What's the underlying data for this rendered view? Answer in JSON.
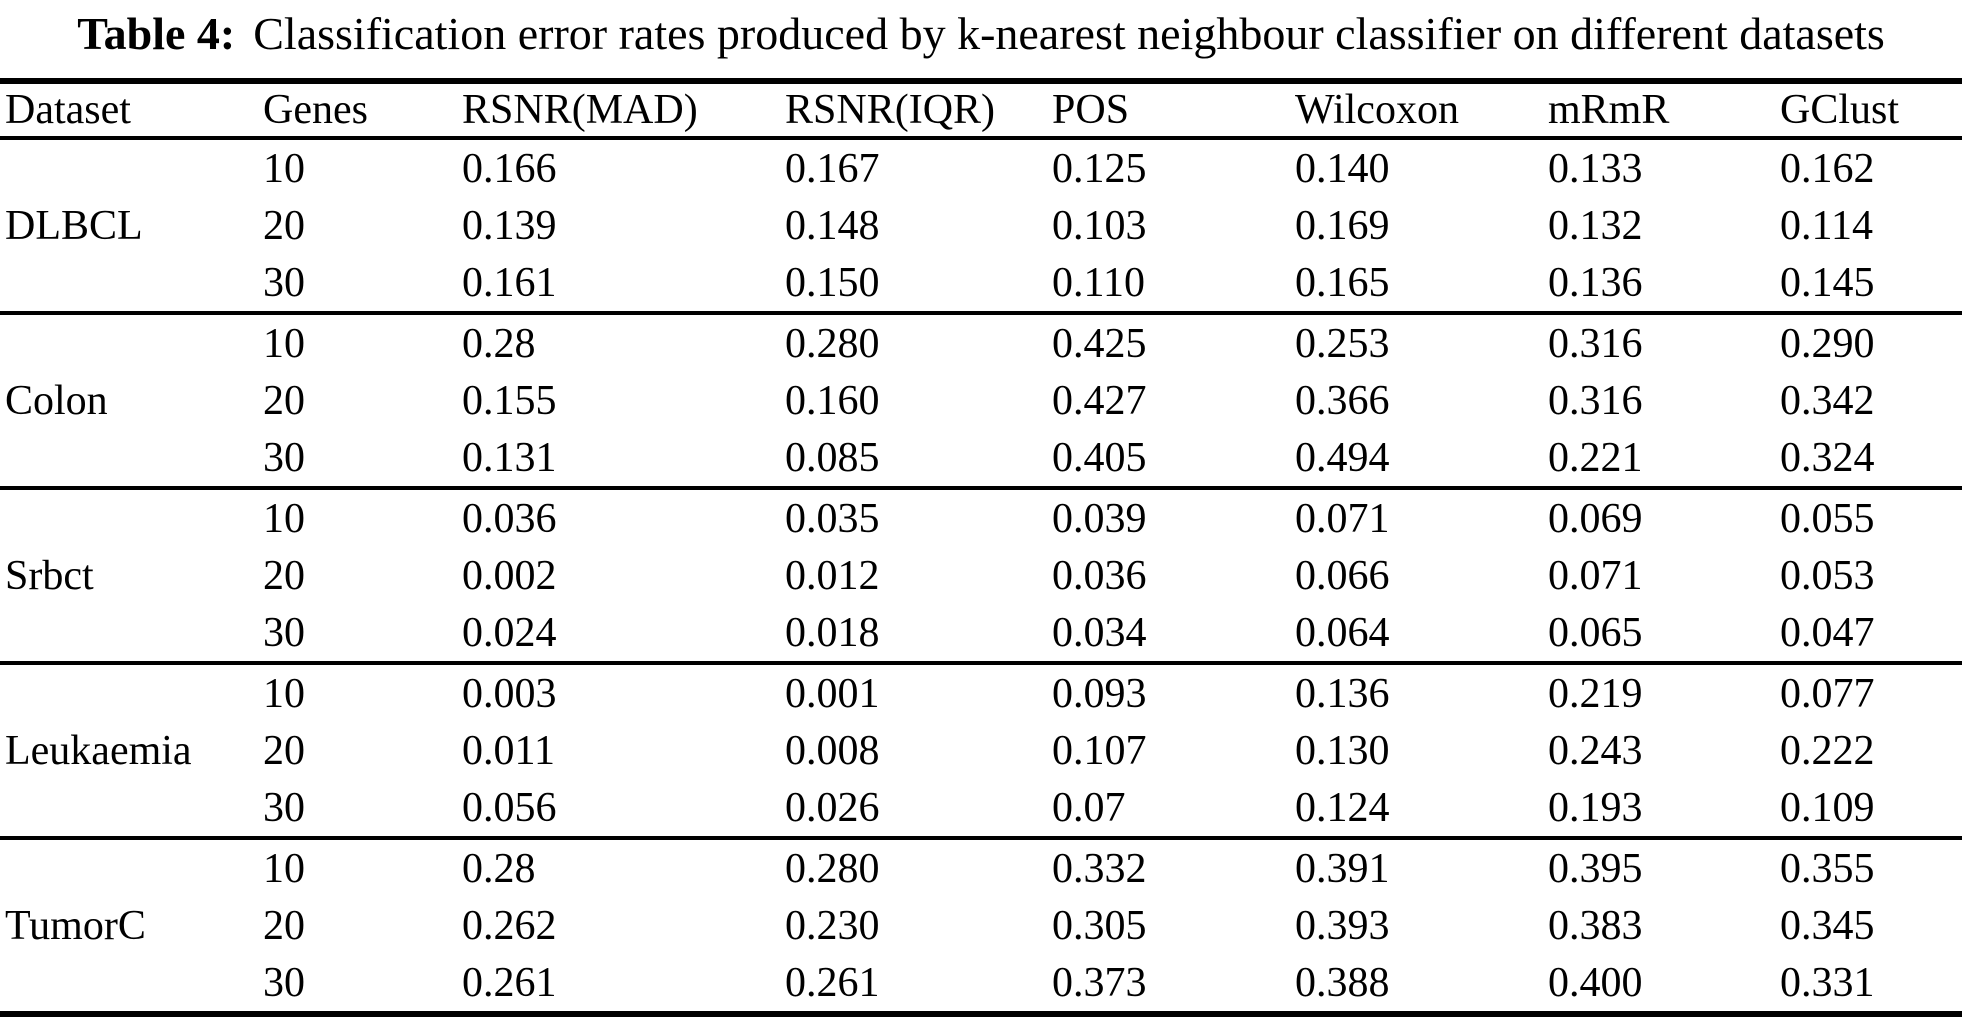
{
  "caption": {
    "label": "Table 4:",
    "text": "Classification error rates produced by k-nearest neighbour classifier on different datasets"
  },
  "table": {
    "columns": [
      "Dataset",
      "Genes",
      "RSNR(MAD)",
      "RSNR(IQR)",
      "POS",
      "Wilcoxon",
      "mRmR",
      "GClust"
    ],
    "groups": [
      {
        "dataset": "DLBCL",
        "rows": [
          {
            "genes": "10",
            "values": [
              "0.166",
              "0.167",
              "0.125",
              "0.140",
              "0.133",
              "0.162"
            ],
            "bold": [
              2
            ]
          },
          {
            "genes": "20",
            "values": [
              "0.139",
              "0.148",
              "0.103",
              "0.169",
              "0.132",
              "0.114"
            ],
            "bold": [
              2
            ]
          },
          {
            "genes": "30",
            "values": [
              "0.161",
              "0.150",
              "0.110",
              "0.165",
              "0.136",
              "0.145"
            ],
            "bold": [
              2
            ]
          }
        ]
      },
      {
        "dataset": "Colon",
        "rows": [
          {
            "genes": "10",
            "values": [
              "0.28",
              "0.280",
              "0.425",
              "0.253",
              "0.316",
              "0.290"
            ],
            "bold": [
              3
            ]
          },
          {
            "genes": "20",
            "values": [
              "0.155",
              "0.160",
              "0.427",
              "0.366",
              "0.316",
              "0.342"
            ],
            "bold": [
              0
            ]
          },
          {
            "genes": "30",
            "values": [
              "0.131",
              "0.085",
              "0.405",
              "0.494",
              "0.221",
              "0.324"
            ],
            "bold": [
              1
            ]
          }
        ]
      },
      {
        "dataset": "Srbct",
        "rows": [
          {
            "genes": "10",
            "values": [
              "0.036",
              "0.035",
              "0.039",
              "0.071",
              "0.069",
              "0.055"
            ],
            "bold": [
              1
            ]
          },
          {
            "genes": "20",
            "values": [
              "0.002",
              "0.012",
              "0.036",
              "0.066",
              "0.071",
              "0.053"
            ],
            "bold": [
              0
            ]
          },
          {
            "genes": "30",
            "values": [
              "0.024",
              "0.018",
              "0.034",
              "0.064",
              "0.065",
              "0.047"
            ],
            "bold": [
              1
            ]
          }
        ]
      },
      {
        "dataset": "Leukaemia",
        "rows": [
          {
            "genes": "10",
            "values": [
              "0.003",
              "0.001",
              "0.093",
              "0.136",
              "0.219",
              "0.077"
            ],
            "bold": [
              1
            ]
          },
          {
            "genes": "20",
            "values": [
              "0.011",
              "0.008",
              "0.107",
              "0.130",
              "0.243",
              "0.222"
            ],
            "bold": [
              1
            ]
          },
          {
            "genes": "30",
            "values": [
              "0.056",
              "0.026",
              "0.07",
              "0.124",
              "0.193",
              "0.109"
            ],
            "bold": [
              1
            ]
          }
        ]
      },
      {
        "dataset": "TumorC",
        "rows": [
          {
            "genes": "10",
            "values": [
              "0.28",
              "0.280",
              "0.332",
              "0.391",
              "0.395",
              "0.355"
            ],
            "bold": [
              0,
              1
            ]
          },
          {
            "genes": "20",
            "values": [
              "0.262",
              "0.230",
              "0.305",
              "0.393",
              "0.383",
              "0.345"
            ],
            "bold": [
              1
            ]
          },
          {
            "genes": "30",
            "values": [
              "0.261",
              "0.261",
              "0.373",
              "0.388",
              "0.400",
              "0.331"
            ],
            "bold": [
              0,
              1
            ]
          }
        ]
      }
    ]
  },
  "colors": {
    "text": "#000000",
    "background": "#ffffff",
    "rule": "#000000"
  }
}
